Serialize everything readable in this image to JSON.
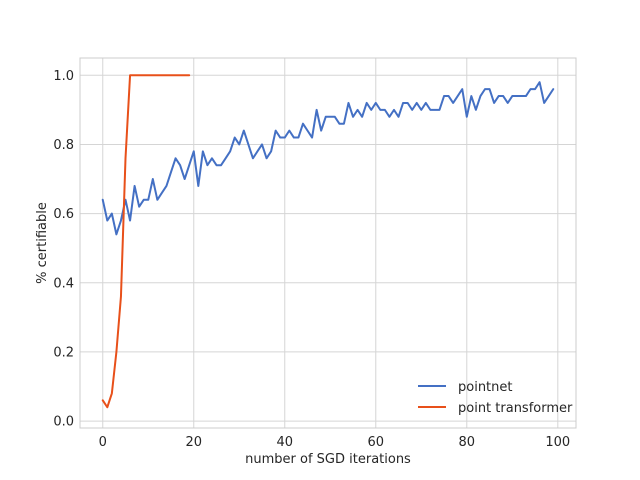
{
  "chart_data": {
    "type": "line",
    "xlabel": "number of SGD iterations",
    "ylabel": "% certifiable",
    "xlim": [
      -5,
      104
    ],
    "ylim": [
      -0.02,
      1.05
    ],
    "x_ticks": [
      0,
      20,
      40,
      60,
      80,
      100
    ],
    "y_ticks": [
      0.0,
      0.2,
      0.4,
      0.6,
      0.8,
      1.0
    ],
    "x_tick_labels": [
      "0",
      "20",
      "40",
      "60",
      "80",
      "100"
    ],
    "y_tick_labels": [
      "0.0",
      "0.2",
      "0.4",
      "0.6",
      "0.8",
      "1.0"
    ],
    "grid": true,
    "legend_position": "lower-right",
    "series": [
      {
        "name": "pointnet",
        "color": "#4470c4",
        "x": [
          0,
          1,
          2,
          3,
          4,
          5,
          6,
          7,
          8,
          9,
          10,
          11,
          12,
          13,
          14,
          15,
          16,
          17,
          18,
          19,
          20,
          21,
          22,
          23,
          24,
          25,
          26,
          27,
          28,
          29,
          30,
          31,
          32,
          33,
          34,
          35,
          36,
          37,
          38,
          39,
          40,
          41,
          42,
          43,
          44,
          45,
          46,
          47,
          48,
          49,
          50,
          51,
          52,
          53,
          54,
          55,
          56,
          57,
          58,
          59,
          60,
          61,
          62,
          63,
          64,
          65,
          66,
          67,
          68,
          69,
          70,
          71,
          72,
          73,
          74,
          75,
          76,
          77,
          78,
          79,
          80,
          81,
          82,
          83,
          84,
          85,
          86,
          87,
          88,
          89,
          90,
          91,
          92,
          93,
          94,
          95,
          96,
          97,
          98,
          99
        ],
        "y": [
          0.64,
          0.58,
          0.6,
          0.54,
          0.58,
          0.64,
          0.58,
          0.68,
          0.62,
          0.64,
          0.64,
          0.7,
          0.64,
          0.66,
          0.68,
          0.72,
          0.76,
          0.74,
          0.7,
          0.74,
          0.78,
          0.68,
          0.78,
          0.74,
          0.76,
          0.74,
          0.74,
          0.76,
          0.78,
          0.82,
          0.8,
          0.84,
          0.8,
          0.76,
          0.78,
          0.8,
          0.76,
          0.78,
          0.84,
          0.82,
          0.82,
          0.84,
          0.82,
          0.82,
          0.86,
          0.84,
          0.82,
          0.9,
          0.84,
          0.88,
          0.88,
          0.88,
          0.86,
          0.86,
          0.92,
          0.88,
          0.9,
          0.88,
          0.92,
          0.9,
          0.92,
          0.9,
          0.9,
          0.88,
          0.9,
          0.88,
          0.92,
          0.92,
          0.9,
          0.92,
          0.9,
          0.92,
          0.9,
          0.9,
          0.9,
          0.94,
          0.94,
          0.92,
          0.94,
          0.96,
          0.88,
          0.94,
          0.9,
          0.94,
          0.96,
          0.96,
          0.92,
          0.94,
          0.94,
          0.92,
          0.94,
          0.94,
          0.94,
          0.94,
          0.96,
          0.96,
          0.98,
          0.92,
          0.94,
          0.96
        ]
      },
      {
        "name": "point transformer",
        "color": "#e8501a",
        "x": [
          0,
          1,
          2,
          3,
          4,
          5,
          6,
          7,
          8,
          9,
          10,
          11,
          12,
          13,
          14,
          15,
          16,
          17,
          18,
          19
        ],
        "y": [
          0.06,
          0.04,
          0.08,
          0.2,
          0.36,
          0.76,
          1.0,
          1.0,
          1.0,
          1.0,
          1.0,
          1.0,
          1.0,
          1.0,
          1.0,
          1.0,
          1.0,
          1.0,
          1.0,
          1.0
        ]
      }
    ]
  }
}
